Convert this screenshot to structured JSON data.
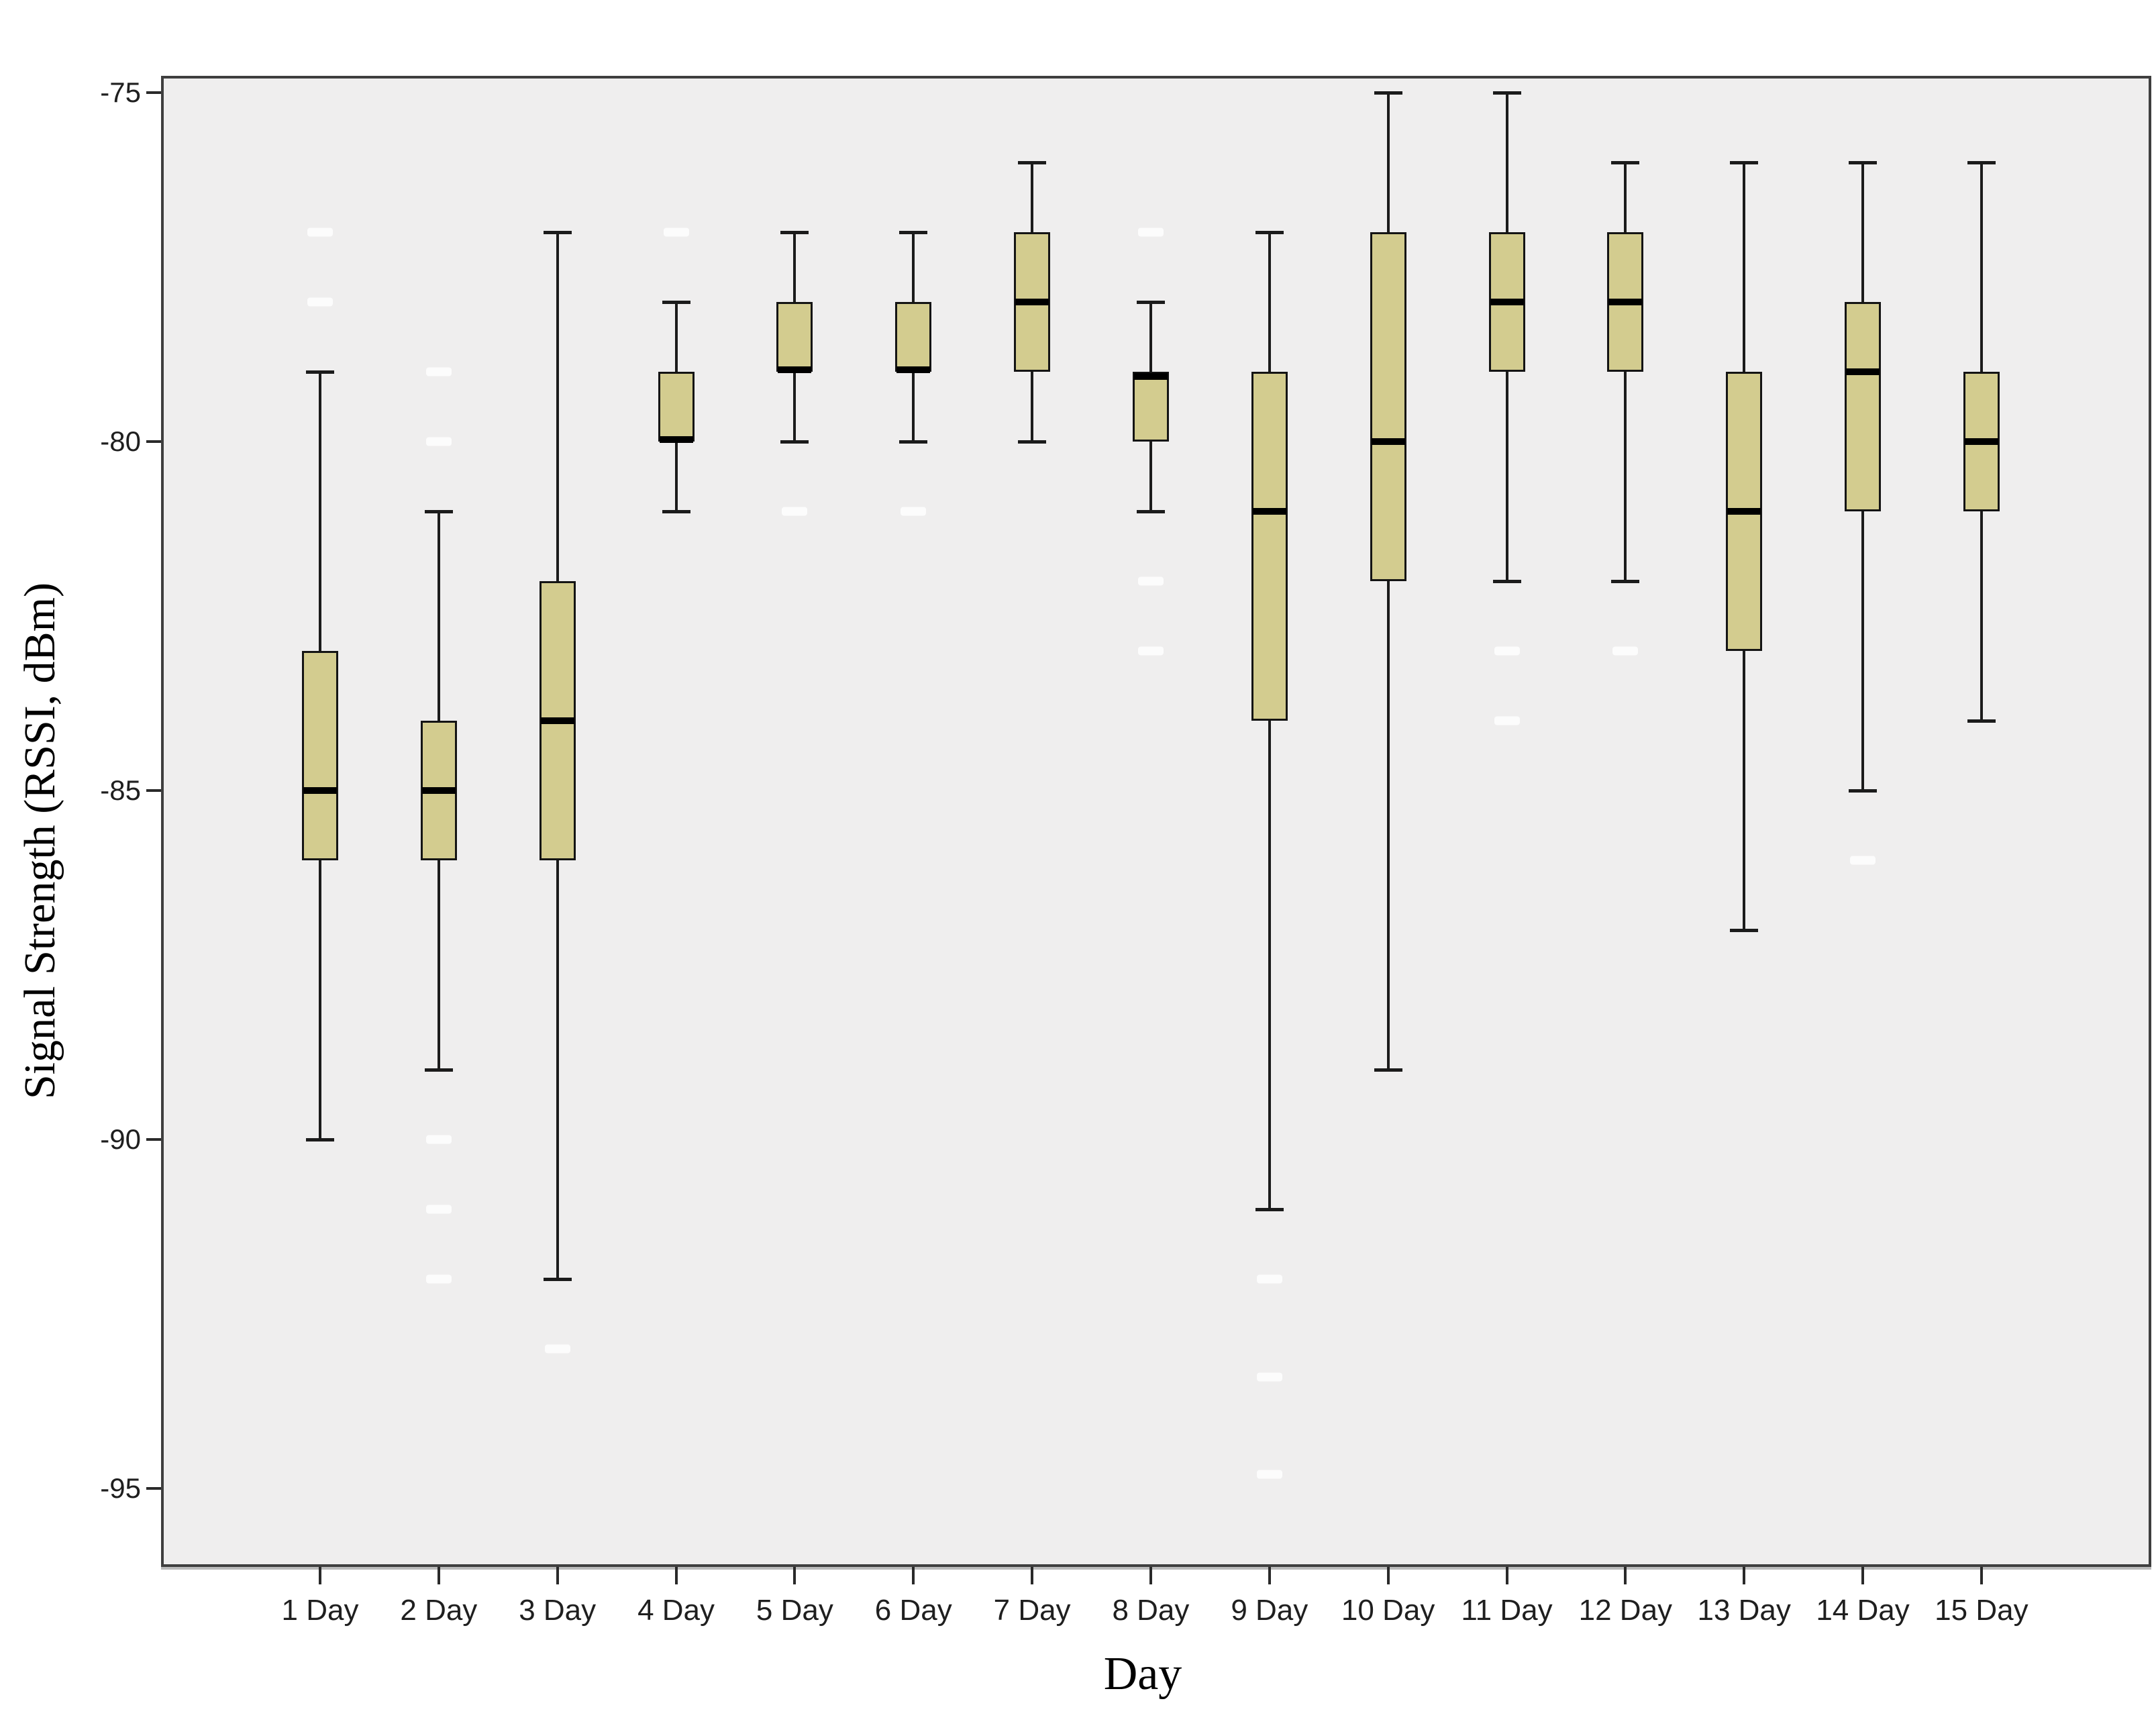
{
  "chart_data": {
    "type": "boxplot",
    "title": "",
    "xlabel": "Day",
    "ylabel": "Signal Strength (RSSI, dBm)",
    "ylim": [
      -96.1,
      -74.8
    ],
    "yticks": [
      -75,
      -80,
      -85,
      -90,
      -95
    ],
    "ytick_labels": [
      "-75",
      "-80",
      "-85",
      "-90",
      "-95"
    ],
    "grid": "off",
    "legend": "none",
    "categories": [
      "1 Day",
      "2 Day",
      "3 Day",
      "4 Day",
      "5 Day",
      "6 Day",
      "7 Day",
      "8 Day",
      "9 Day",
      "10 Day",
      "11 Day",
      "12 Day",
      "13 Day",
      "14 Day",
      "15 Day"
    ],
    "series": [
      {
        "category": "1 Day",
        "whisker_low": -90,
        "q1": -86,
        "median": -85,
        "q3": -83,
        "whisker_high": -79,
        "white_outlier_marks": [
          -77,
          -78
        ]
      },
      {
        "category": "2 Day",
        "whisker_low": -89,
        "q1": -86,
        "median": -85,
        "q3": -84,
        "whisker_high": -81,
        "white_outlier_marks": [
          -79,
          -80,
          -90,
          -91,
          -92
        ]
      },
      {
        "category": "3 Day",
        "whisker_low": -92,
        "q1": -86,
        "median": -84,
        "q3": -82,
        "whisker_high": -77,
        "white_outlier_marks": [
          -93
        ]
      },
      {
        "category": "4 Day",
        "whisker_low": -81,
        "q1": -80,
        "median": -80,
        "q3": -79,
        "whisker_high": -78,
        "white_outlier_marks": [
          -77
        ]
      },
      {
        "category": "5 Day",
        "whisker_low": -80,
        "q1": -79,
        "median": -79,
        "q3": -78,
        "whisker_high": -77,
        "white_outlier_marks": [
          -81
        ]
      },
      {
        "category": "6 Day",
        "whisker_low": -80,
        "q1": -79,
        "median": -79,
        "q3": -78,
        "whisker_high": -77,
        "white_outlier_marks": [
          -81
        ]
      },
      {
        "category": "7 Day",
        "whisker_low": -80,
        "q1": -79,
        "median": -78,
        "q3": -77,
        "whisker_high": -76,
        "white_outlier_marks": []
      },
      {
        "category": "8 Day",
        "whisker_low": -81,
        "q1": -80,
        "median": -79,
        "q3": -79,
        "whisker_high": -78,
        "white_outlier_marks": [
          -77,
          -82,
          -83
        ]
      },
      {
        "category": "9 Day",
        "whisker_low": -91,
        "q1": -84,
        "median": -81,
        "q3": -79,
        "whisker_high": -77,
        "white_outlier_marks": [
          -92,
          -93.4,
          -94.8
        ]
      },
      {
        "category": "10 Day",
        "whisker_low": -89,
        "q1": -82,
        "median": -80,
        "q3": -77,
        "whisker_high": -75,
        "white_outlier_marks": []
      },
      {
        "category": "11 Day",
        "whisker_low": -82,
        "q1": -79,
        "median": -78,
        "q3": -77,
        "whisker_high": -75,
        "white_outlier_marks": [
          -83,
          -84
        ]
      },
      {
        "category": "12 Day",
        "whisker_low": -82,
        "q1": -79,
        "median": -78,
        "q3": -77,
        "whisker_high": -76,
        "white_outlier_marks": [
          -83
        ]
      },
      {
        "category": "13 Day",
        "whisker_low": -87,
        "q1": -83,
        "median": -81,
        "q3": -79,
        "whisker_high": -76,
        "white_outlier_marks": []
      },
      {
        "category": "14 Day",
        "whisker_low": -85,
        "q1": -81,
        "median": -79,
        "q3": -78,
        "whisker_high": -76,
        "white_outlier_marks": [
          -86
        ]
      },
      {
        "category": "15 Day",
        "whisker_low": -84,
        "q1": -81,
        "median": -80,
        "q3": -79,
        "whisker_high": -76,
        "white_outlier_marks": []
      }
    ]
  },
  "colors": {
    "box_fill": "#d3cc8f",
    "box_border": "#141414",
    "median": "#000000",
    "whisker": "#1b1b1b",
    "plot_background": "#efeeee",
    "frame_border": "#3f3f3f",
    "page_background": "#ffffff",
    "tick_text": "#1f1f1f",
    "white_mark": "#fcfcfc"
  }
}
